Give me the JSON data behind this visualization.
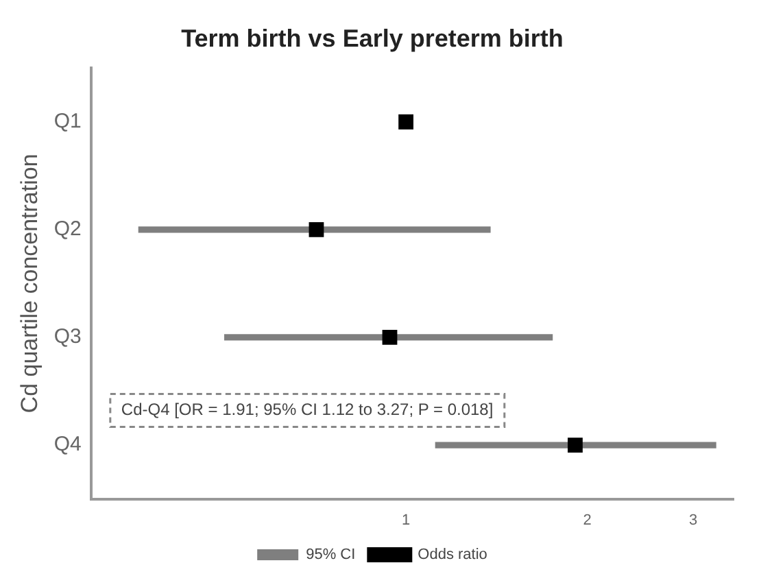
{
  "chart_data": {
    "type": "scatter",
    "title": "Term birth vs Early preterm birth",
    "ylabel": "Cd quartile concentration",
    "orientation": "horizontal",
    "log": "x",
    "categories": [
      "Q1",
      "Q2",
      "Q3",
      "Q4"
    ],
    "series": [
      {
        "name": "95% CI",
        "type": "bar",
        "color": "#7f7f7f",
        "base": [
          null,
          0.36,
          0.5,
          1.12
        ],
        "values": [
          null,
          1.02,
          1.25,
          2.15
        ]
      },
      {
        "name": "Odds ratio",
        "color": "#000000",
        "values": [
          1,
          0.71,
          0.94,
          1.91
        ]
      }
    ],
    "marker": "square",
    "xlim": [
      0.33,
      3.5
    ],
    "xticks": [
      1,
      2,
      3
    ],
    "grid": false,
    "legend": "bottom",
    "annotations": [
      "Cd-Q4 [OR = 1.91; 95% CI 1.12 to 3.27; P = 0.018]"
    ]
  }
}
